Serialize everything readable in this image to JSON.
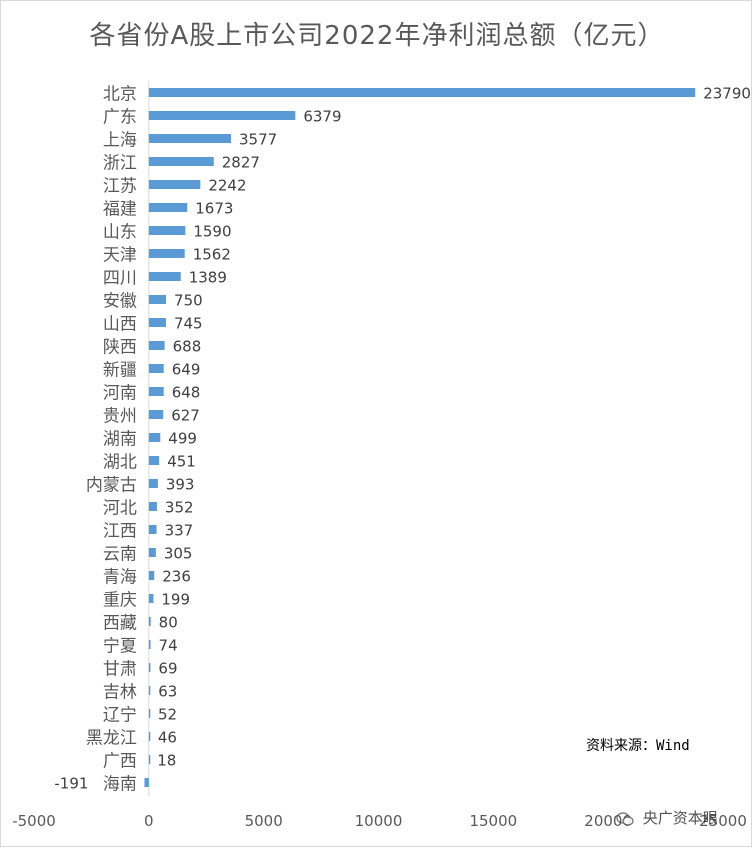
{
  "chart_data": {
    "type": "bar",
    "orientation": "horizontal",
    "title": "各省份A股上市公司2022年净利润总额（亿元）",
    "categories": [
      "北京",
      "广东",
      "上海",
      "浙江",
      "江苏",
      "福建",
      "山东",
      "天津",
      "四川",
      "安徽",
      "山西",
      "陕西",
      "新疆",
      "河南",
      "贵州",
      "湖南",
      "湖北",
      "内蒙古",
      "河北",
      "江西",
      "云南",
      "青海",
      "重庆",
      "西藏",
      "宁夏",
      "甘肃",
      "吉林",
      "辽宁",
      "黑龙江",
      "广西",
      "海南"
    ],
    "values": [
      23790,
      6379,
      3577,
      2827,
      2242,
      1673,
      1590,
      1562,
      1389,
      750,
      745,
      688,
      649,
      648,
      627,
      499,
      451,
      393,
      352,
      337,
      305,
      236,
      199,
      80,
      74,
      69,
      63,
      52,
      46,
      18,
      -191
    ],
    "value_labels": [
      "23790",
      "6379",
      "3577",
      "2827",
      "2242",
      "1673",
      "1590",
      "1562",
      "1389",
      "750",
      "745",
      "688",
      "649",
      "648",
      "627",
      "499",
      "451",
      "393",
      "352",
      "337",
      "305",
      "236",
      "199",
      "80",
      "74",
      "69",
      "63",
      "52",
      "46",
      "18",
      "-191"
    ],
    "xlim": [
      -5000,
      25000
    ],
    "x_ticks": [
      "-5000",
      "0",
      "5000",
      "10000",
      "15000",
      "20000",
      "25000"
    ],
    "x_tick_values": [
      -5000,
      0,
      5000,
      10000,
      15000,
      20000,
      25000
    ],
    "xlabel": "",
    "ylabel": "",
    "grid": false,
    "legend": "none",
    "bar_color": "#5b9bd5",
    "text_color": "#595959"
  },
  "source_note": "资料来源：Wind",
  "watermark": "央广资本眼"
}
